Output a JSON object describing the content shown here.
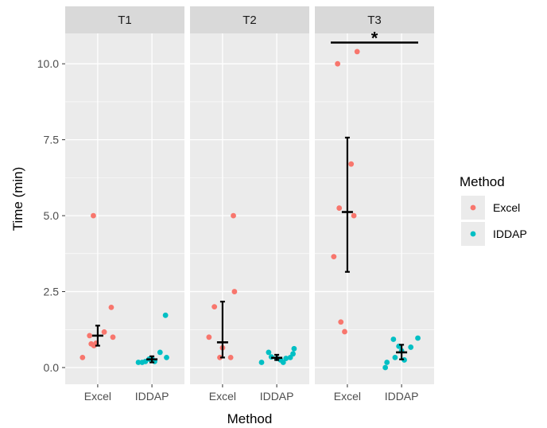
{
  "chart_data": {
    "type": "scatter",
    "subtype": "faceted-jitter-with-mean-errorbars",
    "xlabel": "Method",
    "ylabel": "Time (min)",
    "categories": [
      "Excel",
      "IDDAP"
    ],
    "ylim": [
      -0.55,
      11.0
    ],
    "yticks": [
      0.0,
      2.5,
      5.0,
      7.5,
      10.0
    ],
    "ytick_labels": [
      "0.0",
      "2.5",
      "5.0",
      "7.5",
      "10.0"
    ],
    "grid": true,
    "legend": {
      "title": "Method",
      "placement": "right",
      "entries": [
        {
          "name": "Excel",
          "color": "#F8766D"
        },
        {
          "name": "IDDAP",
          "color": "#00BFC4"
        }
      ]
    },
    "colors": {
      "panel_bg": "#EBEBEB",
      "strip_bg": "#D9D9D9",
      "grid": "#FFFFFF",
      "Excel": "#F8766D",
      "IDDAP": "#00BFC4"
    },
    "facets": [
      {
        "label": "T1",
        "groups": [
          {
            "category": "Excel",
            "points": [
              [
                0.72,
                0.33
              ],
              [
                0.85,
                1.05
              ],
              [
                0.88,
                0.78
              ],
              [
                0.92,
                5.0
              ],
              [
                0.93,
                0.72
              ],
              [
                0.97,
                0.8
              ],
              [
                1.12,
                1.17
              ],
              [
                1.25,
                1.98
              ],
              [
                1.28,
                1.0
              ]
            ],
            "mean": 1.05,
            "lower": 0.72,
            "upper": 1.38
          },
          {
            "category": "IDDAP",
            "points": [
              [
                1.75,
                0.17
              ],
              [
                1.82,
                0.17
              ],
              [
                1.88,
                0.2
              ],
              [
                1.95,
                0.28
              ],
              [
                2.0,
                0.3
              ],
              [
                2.05,
                0.2
              ],
              [
                2.15,
                0.5
              ],
              [
                2.25,
                1.72
              ],
              [
                2.27,
                0.33
              ]
            ],
            "mean": 0.27,
            "lower": 0.17,
            "upper": 0.37
          }
        ]
      },
      {
        "label": "T2",
        "groups": [
          {
            "category": "Excel",
            "points": [
              [
                0.75,
                1.0
              ],
              [
                0.85,
                2.0
              ],
              [
                0.95,
                0.33
              ],
              [
                1.0,
                0.65
              ],
              [
                1.15,
                0.33
              ],
              [
                1.2,
                5.0
              ],
              [
                1.22,
                2.5
              ]
            ],
            "mean": 0.83,
            "lower": 0.33,
            "upper": 2.17
          },
          {
            "category": "IDDAP",
            "points": [
              [
                1.72,
                0.17
              ],
              [
                1.85,
                0.5
              ],
              [
                1.9,
                0.35
              ],
              [
                2.0,
                0.3
              ],
              [
                2.07,
                0.25
              ],
              [
                2.12,
                0.17
              ],
              [
                2.17,
                0.3
              ],
              [
                2.25,
                0.33
              ],
              [
                2.3,
                0.45
              ],
              [
                2.32,
                0.62
              ]
            ],
            "mean": 0.32,
            "lower": 0.25,
            "upper": 0.42
          }
        ]
      },
      {
        "label": "T3",
        "significance": {
          "label": "*",
          "y": 10.7
        },
        "groups": [
          {
            "category": "Excel",
            "points": [
              [
                0.75,
                3.65
              ],
              [
                0.82,
                10.0
              ],
              [
                0.85,
                5.25
              ],
              [
                0.88,
                1.5
              ],
              [
                0.95,
                1.18
              ],
              [
                1.07,
                6.7
              ],
              [
                1.12,
                5.0
              ],
              [
                1.18,
                10.4
              ]
            ],
            "mean": 5.12,
            "lower": 3.15,
            "upper": 7.57
          },
          {
            "category": "IDDAP",
            "points": [
              [
                1.7,
                0.0
              ],
              [
                1.73,
                0.17
              ],
              [
                1.85,
                0.93
              ],
              [
                1.88,
                0.33
              ],
              [
                1.95,
                0.7
              ],
              [
                2.0,
                0.55
              ],
              [
                2.05,
                0.25
              ],
              [
                2.17,
                0.67
              ],
              [
                2.3,
                0.97
              ]
            ],
            "mean": 0.5,
            "lower": 0.27,
            "upper": 0.75
          }
        ]
      }
    ]
  }
}
